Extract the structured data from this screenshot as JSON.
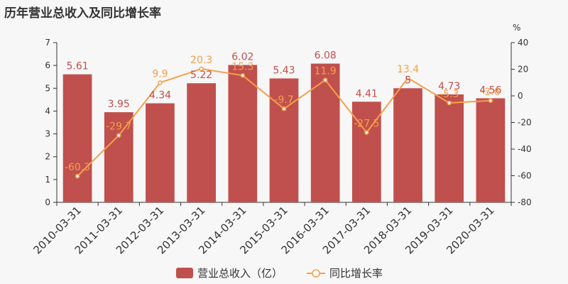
{
  "chart_data": {
    "type": "bar",
    "title": "历年营业总收入及同比增长率",
    "categories": [
      "2010-03-31",
      "2011-03-31",
      "2012-03-31",
      "2013-03-31",
      "2014-03-31",
      "2015-03-31",
      "2016-03-31",
      "2017-03-31",
      "2018-03-31",
      "2019-03-31",
      "2020-03-31"
    ],
    "series": [
      {
        "name": "营业总收入（亿）",
        "type": "bar",
        "axis": "left",
        "color": "#c0504d",
        "values": [
          5.61,
          3.95,
          4.34,
          5.22,
          6.02,
          5.43,
          6.08,
          4.41,
          5,
          4.73,
          4.56
        ],
        "labels": [
          "5.61",
          "3.95",
          "4.34",
          "5.22",
          "6.02",
          "5.43",
          "6.08",
          "4.41",
          "5",
          "4.73",
          "4.56"
        ]
      },
      {
        "name": "同比增长率",
        "type": "line",
        "axis": "right",
        "color": "#f5a04a",
        "values": [
          -60.3,
          -29.7,
          9.9,
          20.3,
          15.3,
          -9.7,
          11.9,
          -27.5,
          13.4,
          -5.3,
          -3.6
        ],
        "labels": [
          "-60.3",
          "-29.7",
          "9.9",
          "20.3",
          "15.3",
          "-9.7",
          "11.9",
          "-27.5",
          "13.4",
          "-5.3",
          "-3.6"
        ]
      }
    ],
    "y_left": {
      "ylim": [
        0,
        7
      ],
      "ticks": [
        "0",
        "1",
        "2",
        "3",
        "4",
        "5",
        "6",
        "7"
      ]
    },
    "y_right": {
      "unit": "%",
      "ylim": [
        -80,
        40
      ],
      "ticks": [
        "-80",
        "-60",
        "-40",
        "-20",
        "0",
        "20",
        "40"
      ]
    },
    "grid": false,
    "legend": "bottom"
  }
}
